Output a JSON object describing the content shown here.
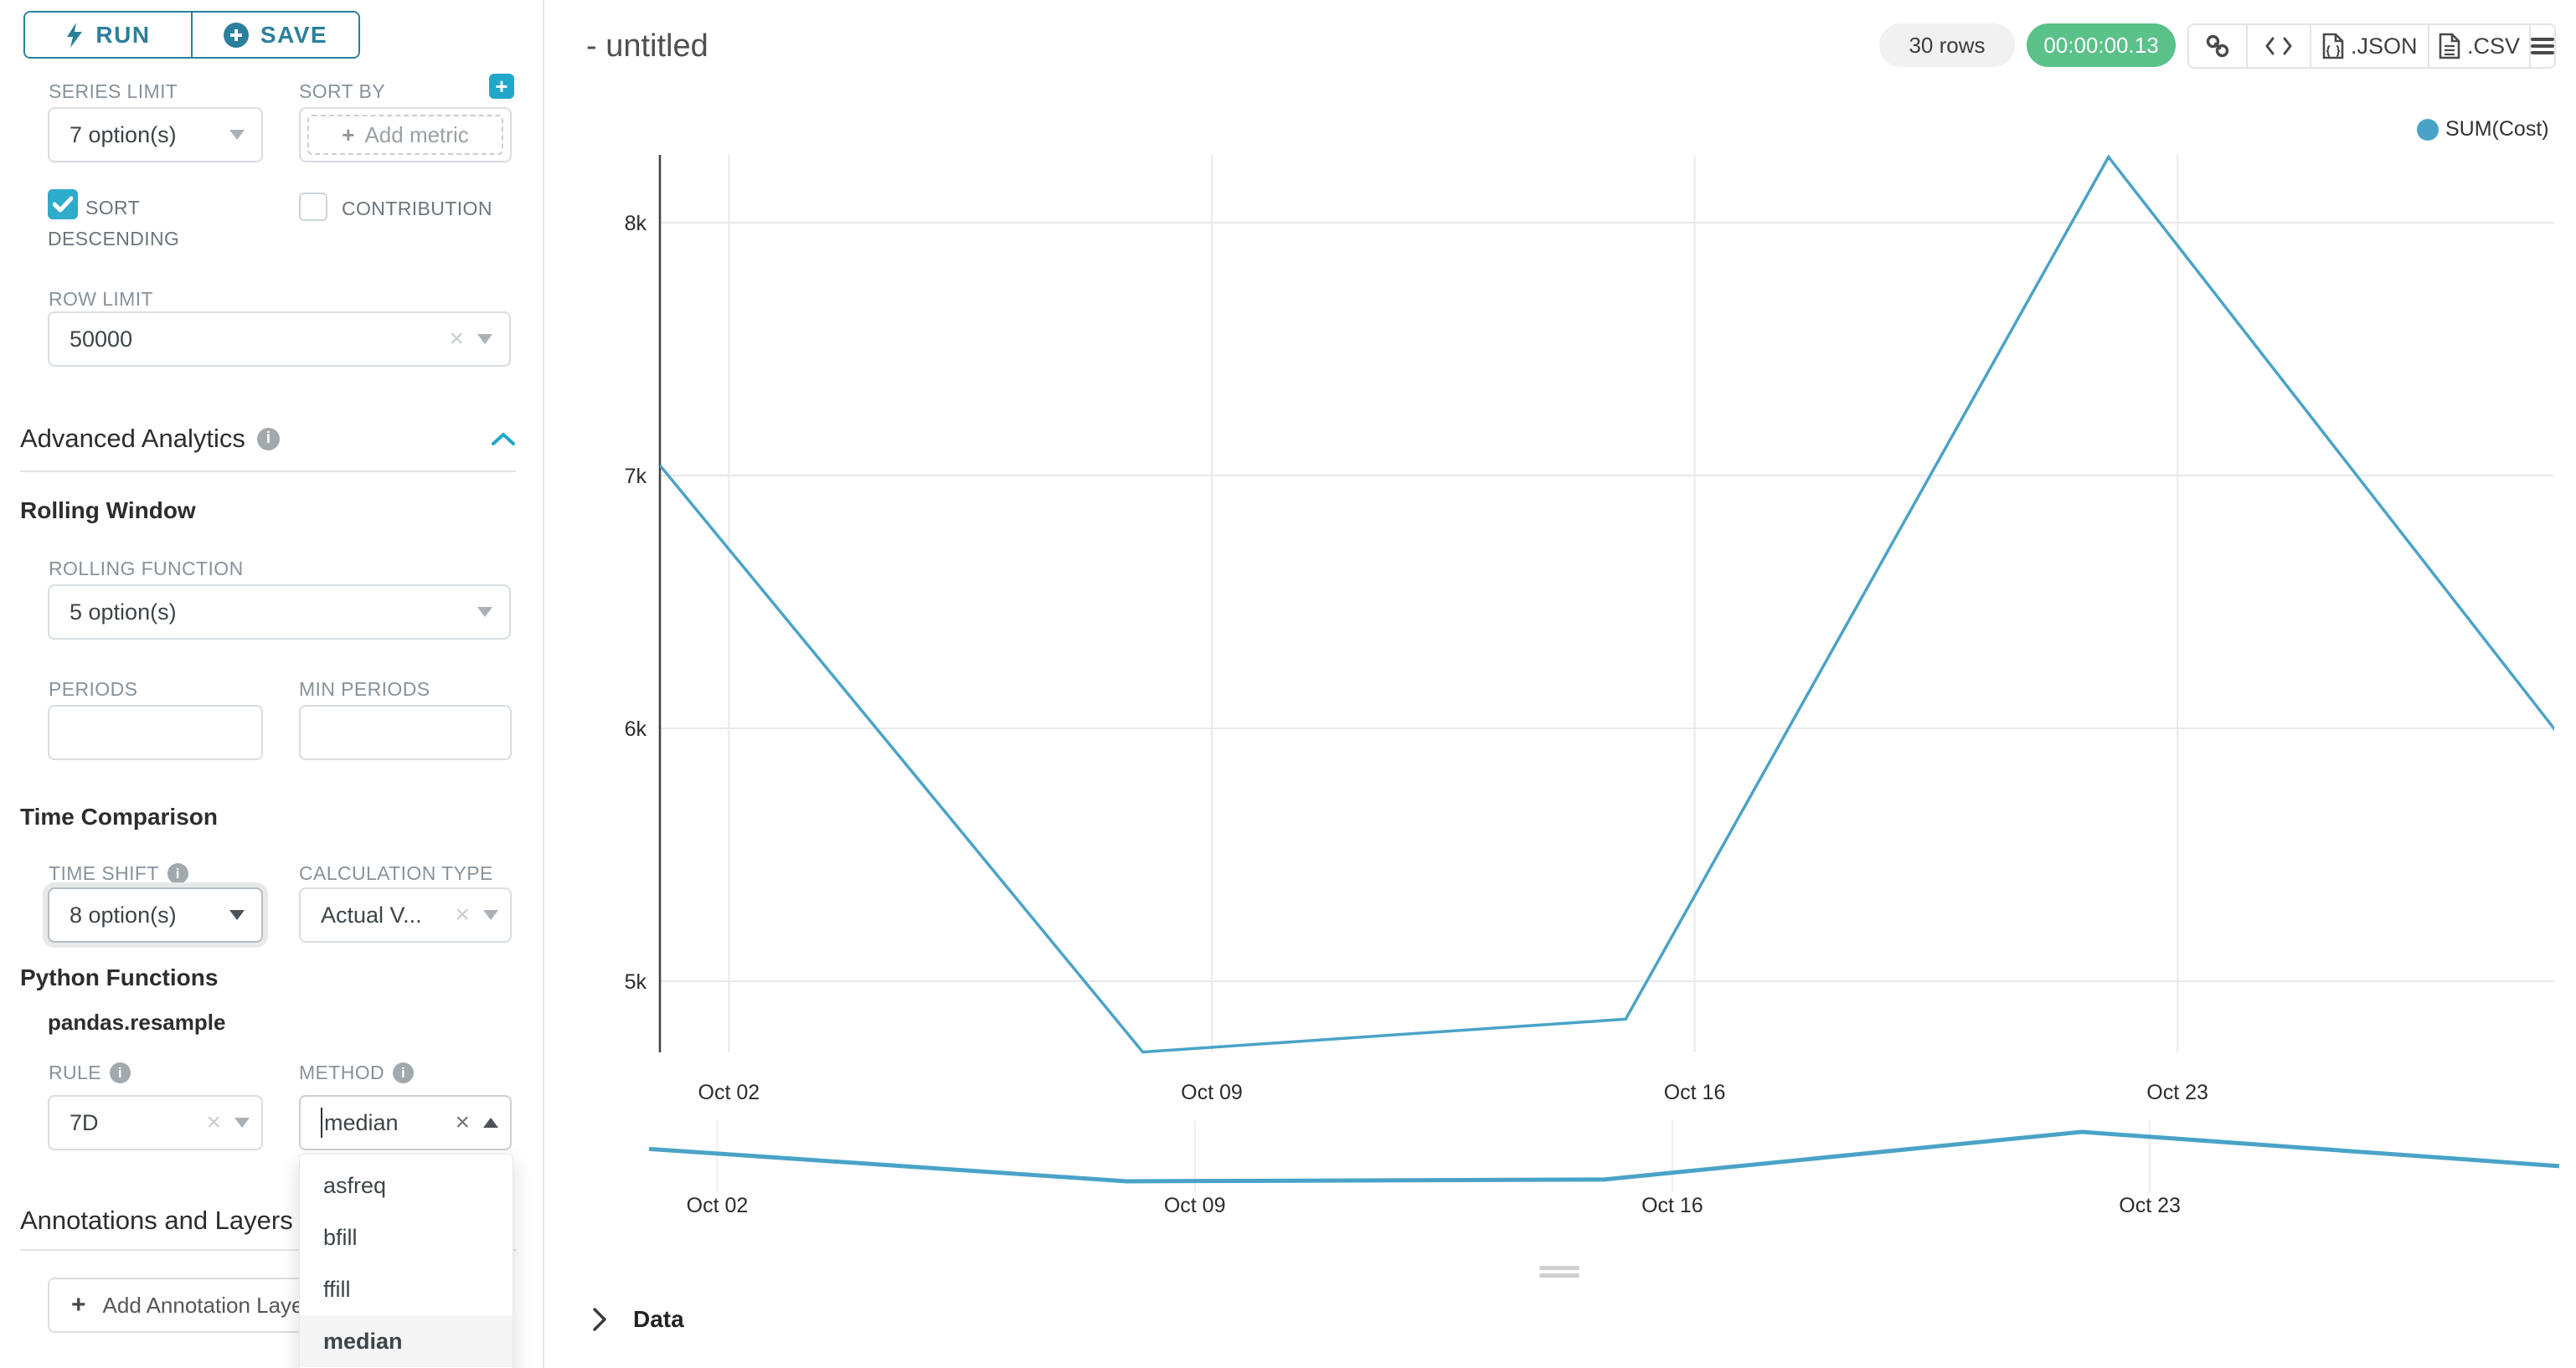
{
  "colors": {
    "accent_teal": "#20a7c9",
    "button_teal": "#2b7f9b",
    "success_green": "#5ac189",
    "chart_line": "#4aa3c7",
    "label_gray": "#87929a"
  },
  "left_panel": {
    "run_label": "RUN",
    "save_label": "SAVE",
    "series_limit_label": "SERIES LIMIT",
    "series_limit_value": "7 option(s)",
    "sort_by_label": "SORT BY",
    "sort_by_placeholder": "Add metric",
    "sort_descending_label": "SORT DESCENDING",
    "sort_descending_checked": true,
    "contribution_label": "CONTRIBUTION",
    "contribution_checked": false,
    "row_limit_label": "ROW LIMIT",
    "row_limit_value": "50000",
    "advanced_analytics_title": "Advanced Analytics",
    "rolling_window_title": "Rolling Window",
    "rolling_function_label": "ROLLING FUNCTION",
    "rolling_function_value": "5 option(s)",
    "periods_label": "PERIODS",
    "periods_value": "",
    "min_periods_label": "MIN PERIODS",
    "min_periods_value": "",
    "time_comparison_title": "Time Comparison",
    "time_shift_label": "TIME SHIFT",
    "time_shift_value": "8 option(s)",
    "calculation_type_label": "CALCULATION TYPE",
    "calculation_type_value": "Actual V...",
    "python_functions_title": "Python Functions",
    "pandas_resample_label": "pandas.resample",
    "rule_label": "RULE",
    "rule_value": "7D",
    "method_label": "METHOD",
    "method_value": "median",
    "method_options": [
      "asfreq",
      "bfill",
      "ffill",
      "median"
    ],
    "method_selected": "median",
    "annotations_title": "Annotations and Layers",
    "add_annotation_label": "Add Annotation Layer"
  },
  "header": {
    "title": "- untitled",
    "rows_badge": "30 rows",
    "timer": "00:00:00.13",
    "json_label": ".JSON",
    "csv_label": ".CSV"
  },
  "chart_data": {
    "type": "line",
    "title": "- untitled",
    "legend": [
      "SUM(Cost)"
    ],
    "legend_position": "top-right",
    "x": [
      "Oct 01",
      "Oct 08",
      "Oct 15",
      "Oct 22",
      "Oct 29"
    ],
    "series": [
      {
        "name": "SUM(Cost)",
        "values": [
          7040,
          4720,
          4850,
          8260,
          5810
        ]
      }
    ],
    "x_tick_labels": [
      "Oct 02",
      "Oct 09",
      "Oct 16",
      "Oct 23"
    ],
    "y_tick_labels": [
      "8k",
      "7k",
      "6k",
      "5k"
    ],
    "y_tick_values": [
      8000,
      7000,
      6000,
      5000
    ],
    "ylim": [
      4640,
      8400
    ],
    "grid": true,
    "line_color": "#4aa3c7",
    "has_minimap": true
  },
  "data_panel_label": "Data"
}
